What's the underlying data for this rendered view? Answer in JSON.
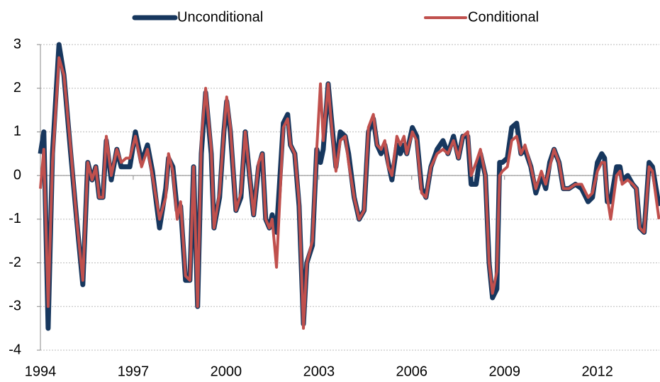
{
  "chart_data": {
    "type": "line",
    "x": [
      1994.0,
      1994.11,
      1994.25,
      1994.39,
      1994.6,
      1994.76,
      1994.98,
      1995.17,
      1995.37,
      1995.53,
      1995.67,
      1995.79,
      1995.9,
      1996.02,
      1996.13,
      1996.29,
      1996.47,
      1996.61,
      1996.77,
      1996.89,
      1997.07,
      1997.27,
      1997.46,
      1997.62,
      1997.85,
      1998.05,
      1998.14,
      1998.28,
      1998.42,
      1998.53,
      1998.69,
      1998.83,
      1998.95,
      1999.08,
      1999.2,
      1999.34,
      1999.52,
      1999.61,
      1999.79,
      1999.93,
      2000.02,
      2000.14,
      2000.32,
      2000.48,
      2000.62,
      2000.76,
      2000.89,
      2001.05,
      2001.17,
      2001.28,
      2001.4,
      2001.49,
      2001.63,
      2001.85,
      2001.99,
      2002.08,
      2002.22,
      2002.36,
      2002.5,
      2002.61,
      2002.79,
      2002.93,
      2003.05,
      2003.14,
      2003.3,
      2003.39,
      2003.55,
      2003.69,
      2003.85,
      2003.96,
      2004.14,
      2004.3,
      2004.46,
      2004.6,
      2004.76,
      2004.88,
      2005.01,
      2005.13,
      2005.24,
      2005.36,
      2005.52,
      2005.63,
      2005.75,
      2005.84,
      2006.02,
      2006.16,
      2006.32,
      2006.46,
      2006.62,
      2006.82,
      2007.01,
      2007.17,
      2007.35,
      2007.51,
      2007.65,
      2007.81,
      2007.92,
      2008.08,
      2008.22,
      2008.38,
      2008.5,
      2008.61,
      2008.75,
      2008.84,
      2008.93,
      2009.09,
      2009.23,
      2009.39,
      2009.53,
      2009.66,
      2009.85,
      2010.01,
      2010.19,
      2010.33,
      2010.46,
      2010.6,
      2010.76,
      2010.9,
      2011.08,
      2011.29,
      2011.49,
      2011.7,
      2011.84,
      2012.0,
      2012.14,
      2012.23,
      2012.32,
      2012.43,
      2012.62,
      2012.73,
      2012.8,
      2012.98,
      2013.14,
      2013.26,
      2013.37,
      2013.51,
      2013.67,
      2013.78,
      2013.99
    ],
    "series": [
      {
        "name": "Unconditional",
        "color": "#17375e",
        "width": 7,
        "values": [
          0.5,
          1.0,
          -3.5,
          0.5,
          3.0,
          2.3,
          0.5,
          -1.0,
          -2.5,
          0.3,
          -0.1,
          0.2,
          -0.5,
          -0.5,
          0.8,
          -0.1,
          0.6,
          0.2,
          0.2,
          0.2,
          1.0,
          0.3,
          0.7,
          0.1,
          -1.2,
          -0.3,
          0.4,
          0.2,
          -0.8,
          -0.7,
          -2.4,
          -2.4,
          0.2,
          -3.0,
          0.5,
          1.9,
          0.5,
          -1.2,
          -0.5,
          1.0,
          1.7,
          1.0,
          -0.8,
          -0.5,
          1.0,
          0.0,
          -0.9,
          0.2,
          0.5,
          -1.0,
          -1.2,
          -0.9,
          -1.3,
          1.2,
          1.4,
          0.7,
          0.5,
          -0.7,
          -3.4,
          -2.0,
          -1.6,
          0.6,
          0.3,
          0.6,
          2.1,
          1.4,
          0.2,
          1.0,
          0.9,
          0.5,
          -0.5,
          -1.0,
          -0.8,
          1.0,
          1.3,
          0.7,
          0.5,
          0.7,
          0.3,
          -0.1,
          0.7,
          0.5,
          0.7,
          0.5,
          1.1,
          0.9,
          -0.3,
          -0.5,
          0.2,
          0.6,
          0.8,
          0.5,
          0.9,
          0.4,
          0.9,
          0.9,
          -0.2,
          -0.2,
          0.5,
          0.0,
          -2.0,
          -2.8,
          -2.6,
          0.3,
          0.3,
          0.4,
          1.1,
          1.2,
          0.5,
          0.6,
          0.2,
          -0.4,
          0.0,
          -0.3,
          0.3,
          0.6,
          0.3,
          -0.3,
          -0.3,
          -0.2,
          -0.3,
          -0.6,
          -0.5,
          0.3,
          0.5,
          0.4,
          -0.6,
          -0.6,
          0.2,
          0.2,
          -0.1,
          0.0,
          -0.2,
          -0.3,
          -1.2,
          -1.3,
          0.3,
          0.2,
          -0.7
        ]
      },
      {
        "name": "Conditional",
        "color": "#c0504d",
        "width": 4,
        "values": [
          -0.3,
          0.6,
          -3.0,
          0.3,
          2.7,
          2.3,
          0.6,
          -1.0,
          -2.4,
          0.3,
          -0.1,
          0.2,
          -0.5,
          -0.5,
          0.9,
          0.0,
          0.6,
          0.3,
          0.4,
          0.4,
          0.9,
          0.2,
          0.6,
          0.0,
          -1.0,
          -0.5,
          0.5,
          0.1,
          -1.0,
          -0.6,
          -2.3,
          -2.4,
          0.2,
          -3.0,
          0.8,
          2.0,
          0.6,
          -1.2,
          -0.4,
          1.0,
          1.8,
          1.1,
          -0.8,
          -0.4,
          1.0,
          0.0,
          -0.9,
          0.3,
          0.5,
          -1.0,
          -1.2,
          -1.0,
          -2.1,
          1.1,
          1.3,
          0.7,
          0.5,
          -0.6,
          -3.5,
          -2.0,
          -1.5,
          0.6,
          2.1,
          0.8,
          2.1,
          1.3,
          0.1,
          0.8,
          0.9,
          0.3,
          -0.5,
          -1.0,
          -0.8,
          1.1,
          1.4,
          0.7,
          0.6,
          0.8,
          0.2,
          0.0,
          0.9,
          0.7,
          0.9,
          0.5,
          1.0,
          0.8,
          -0.4,
          -0.5,
          0.2,
          0.5,
          0.6,
          0.5,
          0.8,
          0.4,
          0.9,
          1.0,
          0.0,
          0.3,
          0.6,
          0.0,
          -2.0,
          -2.7,
          -2.2,
          0.0,
          0.1,
          0.2,
          0.8,
          0.9,
          0.5,
          0.7,
          0.2,
          -0.3,
          0.1,
          -0.2,
          0.2,
          0.6,
          0.3,
          -0.3,
          -0.3,
          -0.2,
          -0.2,
          -0.5,
          -0.4,
          0.1,
          0.3,
          0.3,
          -0.5,
          -1.0,
          0.0,
          0.1,
          -0.2,
          -0.1,
          -0.2,
          -0.3,
          -1.2,
          -1.3,
          0.2,
          0.1,
          -1.0
        ]
      }
    ],
    "xlim": [
      1994,
      2014
    ],
    "xticks": [
      1994,
      1997,
      2000,
      2003,
      2006,
      2009,
      2012
    ],
    "ylim": [
      -4,
      3
    ],
    "yticks": [
      -4,
      -3,
      -2,
      -1,
      0,
      1,
      2,
      3
    ],
    "grid": true,
    "legend": "top"
  }
}
